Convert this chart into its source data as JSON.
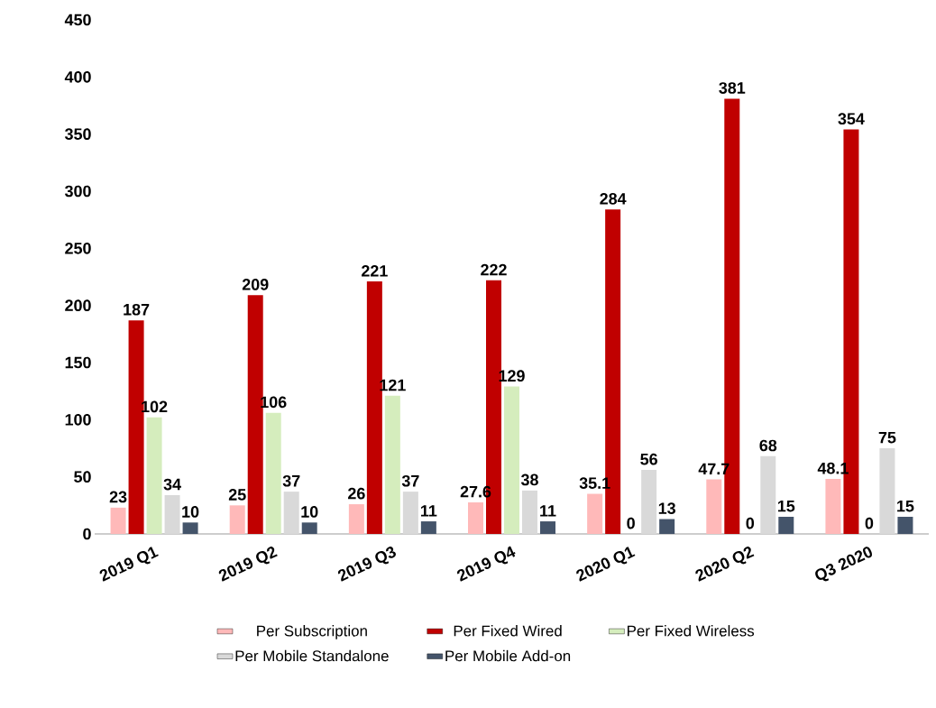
{
  "chart_data": {
    "type": "bar",
    "categories": [
      "2019 Q1",
      "2019 Q2",
      "2019 Q3",
      "2019 Q4",
      "2020 Q1",
      "2020 Q2",
      "Q3 2020"
    ],
    "series": [
      {
        "name": "Per Subscription",
        "color": "#ffb9b9",
        "values": [
          23,
          25,
          26,
          27.6,
          35.1,
          47.7,
          48.1
        ]
      },
      {
        "name": "Per Fixed Wired",
        "color": "#c00000",
        "values": [
          187,
          209,
          221,
          222,
          284,
          381,
          354
        ]
      },
      {
        "name": "Per Fixed Wireless",
        "color": "#d5edbd",
        "values": [
          102,
          106,
          121,
          129,
          0,
          0,
          0
        ]
      },
      {
        "name": "Per Mobile Standalone",
        "color": "#d9d9d9",
        "values": [
          34,
          37,
          37,
          38,
          56,
          68,
          75
        ]
      },
      {
        "name": "Per Mobile Add-on",
        "color": "#44546a",
        "values": [
          10,
          10,
          11,
          11,
          13,
          15,
          15
        ]
      }
    ],
    "ylim": [
      0,
      450
    ],
    "yticks": [
      0,
      50,
      100,
      150,
      200,
      250,
      300,
      350,
      400,
      450
    ],
    "legend": "bottom",
    "data_labels": true
  }
}
